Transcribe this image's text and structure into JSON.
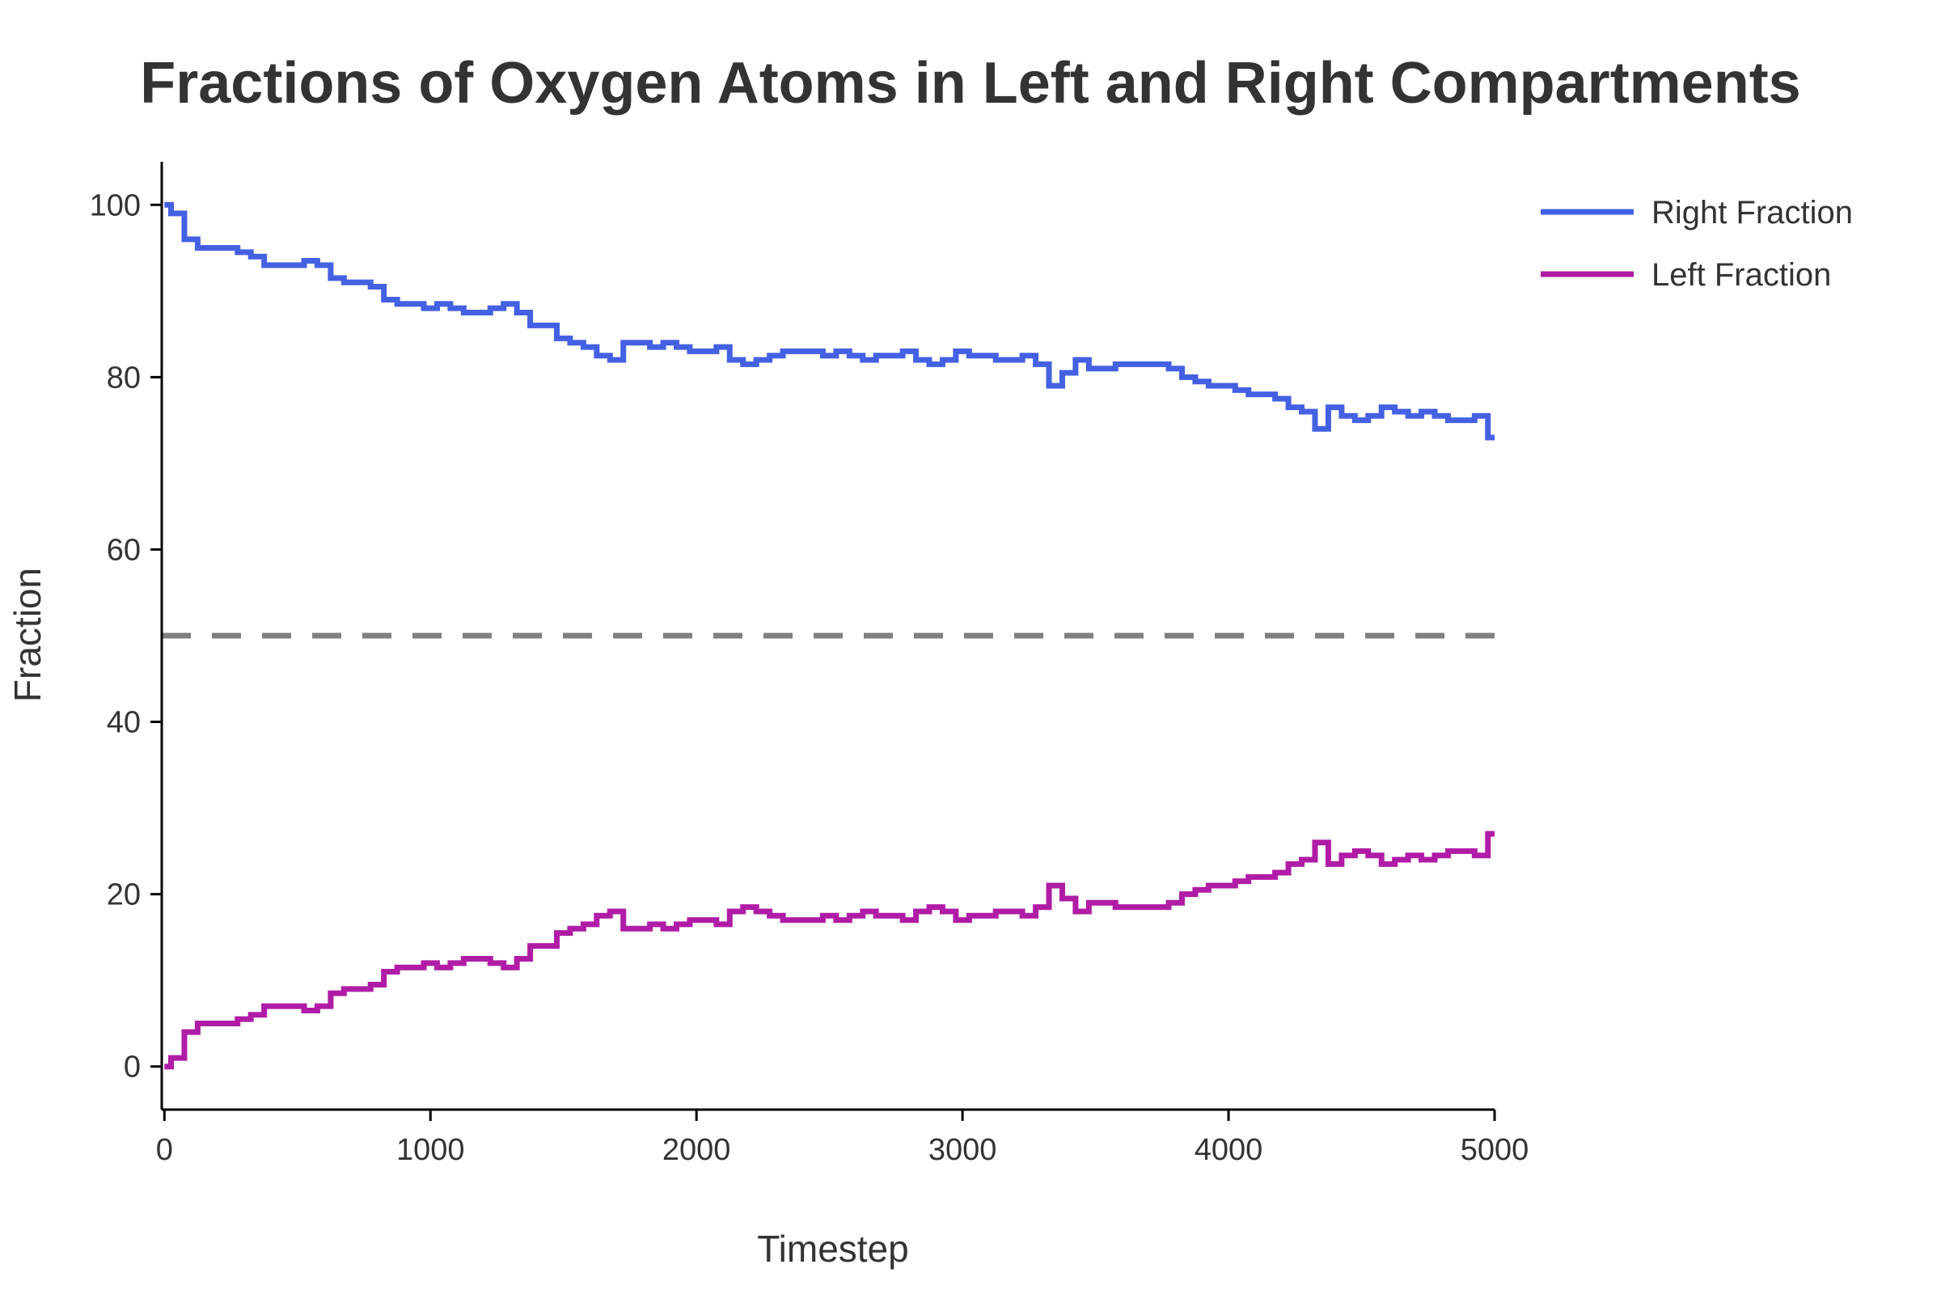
{
  "chart_data": {
    "type": "line",
    "title": "Fractions of Oxygen Atoms in Left and Right Compartments",
    "xlabel": "Timestep",
    "ylabel": "Fraction",
    "xlim": [
      -10,
      5000
    ],
    "ylim": [
      -5,
      105
    ],
    "xticks": [
      0,
      1000,
      2000,
      3000,
      4000,
      5000
    ],
    "xtick_labels": [
      "0",
      "1000",
      "2000",
      "3000",
      "4000",
      "5000"
    ],
    "yticks": [
      0,
      20,
      40,
      60,
      80,
      100
    ],
    "ytick_labels": [
      "0",
      "20",
      "40",
      "60",
      "80",
      "100"
    ],
    "grid": false,
    "legend_position": "top-right",
    "reference_line": {
      "y": 50,
      "style": "dashed",
      "color": "#808080"
    },
    "x": [
      0,
      50,
      100,
      150,
      200,
      250,
      300,
      350,
      400,
      450,
      500,
      550,
      600,
      650,
      700,
      750,
      800,
      850,
      900,
      950,
      1000,
      1050,
      1100,
      1150,
      1200,
      1250,
      1300,
      1350,
      1400,
      1450,
      1500,
      1550,
      1600,
      1650,
      1700,
      1750,
      1800,
      1850,
      1900,
      1950,
      2000,
      2050,
      2100,
      2150,
      2200,
      2250,
      2300,
      2350,
      2400,
      2450,
      2500,
      2550,
      2600,
      2650,
      2700,
      2750,
      2800,
      2850,
      2900,
      2950,
      3000,
      3050,
      3100,
      3150,
      3200,
      3250,
      3300,
      3350,
      3400,
      3450,
      3500,
      3550,
      3600,
      3650,
      3700,
      3750,
      3800,
      3850,
      3900,
      3950,
      4000,
      4050,
      4100,
      4150,
      4200,
      4250,
      4300,
      4350,
      4400,
      4450,
      4500,
      4550,
      4600,
      4650,
      4700,
      4750,
      4800,
      4850,
      4900,
      4950,
      5000
    ],
    "series": [
      {
        "name": "Right Fraction",
        "color": "#4361e2",
        "values": [
          100,
          99,
          96,
          95,
          95,
          95,
          94.5,
          94,
          93,
          93,
          93,
          93.5,
          93,
          91.5,
          91,
          91,
          90.5,
          89,
          88.5,
          88.5,
          88,
          88.5,
          88,
          87.5,
          87.5,
          88,
          88.5,
          87.5,
          86,
          86,
          84.5,
          84,
          83.5,
          82.5,
          82,
          84,
          84,
          83.5,
          84,
          83.5,
          83,
          83,
          83.5,
          82,
          81.5,
          82,
          82.5,
          83,
          83,
          83,
          82.5,
          83,
          82.5,
          82,
          82.5,
          82.5,
          83,
          82,
          81.5,
          82,
          83,
          82.5,
          82.5,
          82,
          82,
          82.5,
          81.5,
          79,
          80.5,
          82,
          81,
          81,
          81.5,
          81.5,
          81.5,
          81.5,
          81,
          80,
          79.5,
          79,
          79,
          78.5,
          78,
          78,
          77.5,
          76.5,
          76,
          74,
          76.5,
          75.5,
          75,
          75.5,
          76.5,
          76,
          75.5,
          76,
          75.5,
          75,
          75,
          75.5,
          73
        ]
      },
      {
        "name": "Left Fraction",
        "color": "#b01ca6",
        "values": [
          0,
          1,
          4,
          5,
          5,
          5,
          5.5,
          6,
          7,
          7,
          7,
          6.5,
          7,
          8.5,
          9,
          9,
          9.5,
          11,
          11.5,
          11.5,
          12,
          11.5,
          12,
          12.5,
          12.5,
          12,
          11.5,
          12.5,
          14,
          14,
          15.5,
          16,
          16.5,
          17.5,
          18,
          16,
          16,
          16.5,
          16,
          16.5,
          17,
          17,
          16.5,
          18,
          18.5,
          18,
          17.5,
          17,
          17,
          17,
          17.5,
          17,
          17.5,
          18,
          17.5,
          17.5,
          17,
          18,
          18.5,
          18,
          17,
          17.5,
          17.5,
          18,
          18,
          17.5,
          18.5,
          21,
          19.5,
          18,
          19,
          19,
          18.5,
          18.5,
          18.5,
          18.5,
          19,
          20,
          20.5,
          21,
          21,
          21.5,
          22,
          22,
          22.5,
          23.5,
          24,
          26,
          23.5,
          24.5,
          25,
          24.5,
          23.5,
          24,
          24.5,
          24,
          24.5,
          25,
          25,
          24.5,
          27
        ]
      }
    ]
  }
}
